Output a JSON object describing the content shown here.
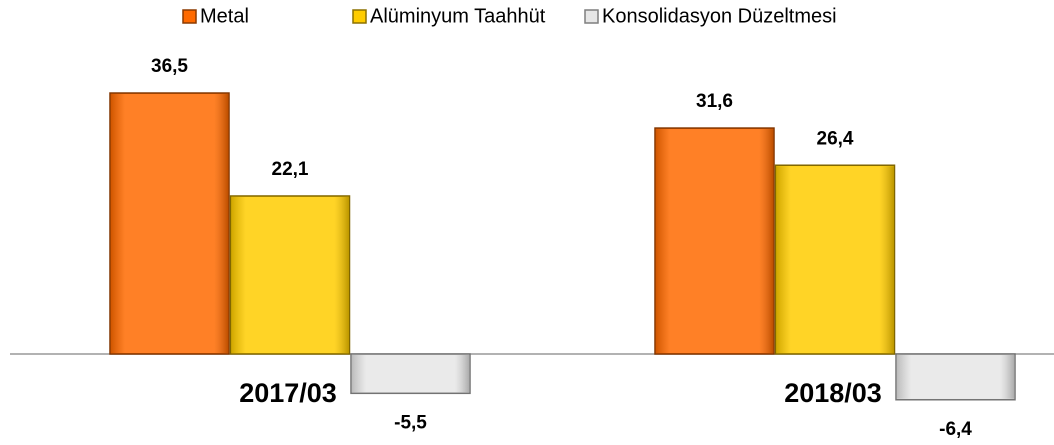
{
  "chart_data": {
    "type": "bar",
    "categories": [
      "2017/03",
      "2018/03"
    ],
    "series": [
      {
        "name": "Metal",
        "color": "#ff6a00",
        "values": [
          36.5,
          31.6
        ],
        "value_labels": [
          "36,5",
          "31,6"
        ]
      },
      {
        "name": "Alüminyum Taahhüt",
        "color": "#ffcc00",
        "values": [
          22.1,
          26.4
        ],
        "value_labels": [
          "22,1",
          "26,4"
        ]
      },
      {
        "name": "Konsolidasyon Düzeltmesi",
        "color": "#e6e6e6",
        "values": [
          -5.5,
          -6.4
        ],
        "value_labels": [
          "-5,5",
          "-6,4"
        ]
      }
    ],
    "legend": "top"
  }
}
